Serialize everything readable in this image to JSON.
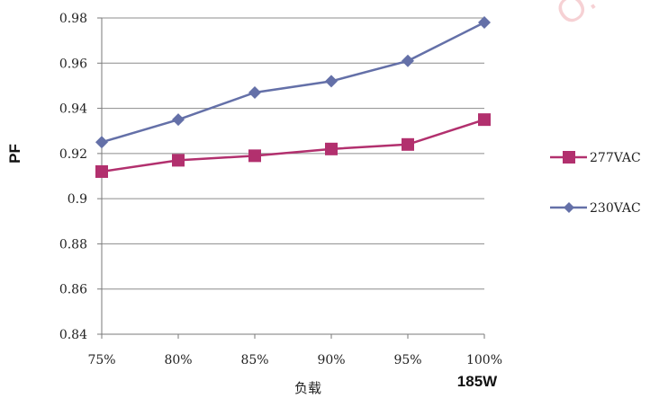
{
  "chart_data": {
    "type": "line",
    "title": "",
    "xlabel": "负载",
    "ylabel": "PF",
    "load_note": "185W",
    "categories": [
      "75%",
      "80%",
      "85%",
      "90%",
      "95%",
      "100%"
    ],
    "ylim": [
      0.84,
      0.98
    ],
    "yticks": [
      0.84,
      0.86,
      0.88,
      0.9,
      0.92,
      0.94,
      0.96,
      0.98
    ],
    "ytick_labels": [
      "0.84",
      "0.86",
      "0.88",
      "0.9",
      "0.92",
      "0.94",
      "0.96",
      "0.98"
    ],
    "grid": true,
    "legend_position": "right",
    "series": [
      {
        "name": "277VAC",
        "values": [
          0.912,
          0.917,
          0.919,
          0.922,
          0.924,
          0.935
        ],
        "color": "#b2306e",
        "marker": "square"
      },
      {
        "name": "230VAC",
        "values": [
          0.925,
          0.935,
          0.947,
          0.952,
          0.961,
          0.978
        ],
        "color": "#6470a8",
        "marker": "diamond"
      }
    ]
  }
}
